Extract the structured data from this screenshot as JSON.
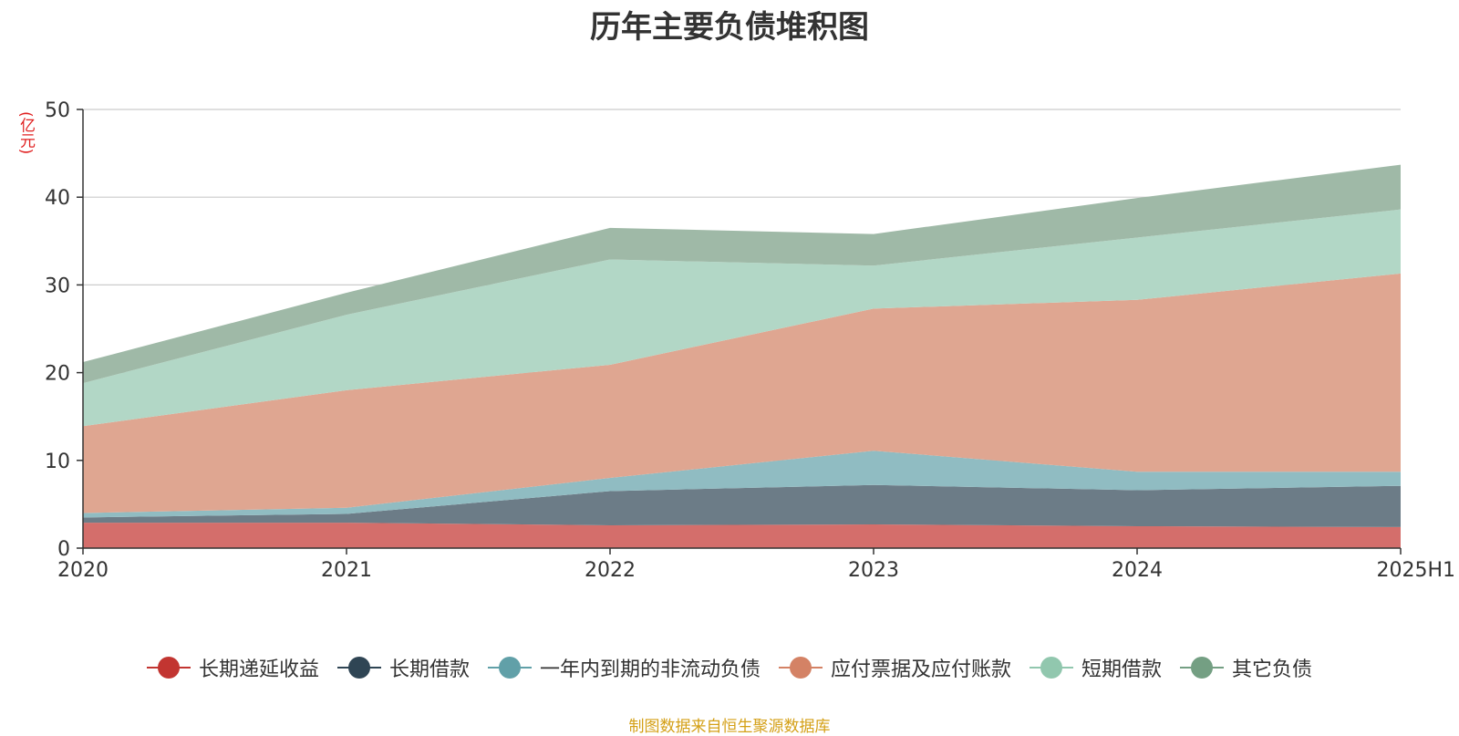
{
  "chart_data": {
    "type": "area",
    "title": "历年主要负债堆积图",
    "unit_label": "(亿元)",
    "source_note": "制图数据来自恒生聚源数据库",
    "categories": [
      "2020",
      "2021",
      "2022",
      "2023",
      "2024",
      "2025H1"
    ],
    "ylim": [
      0,
      50
    ],
    "yticks": [
      0,
      10,
      20,
      30,
      40,
      50
    ],
    "grid": true,
    "stacked": true,
    "legend_position": "bottom",
    "series": [
      {
        "name": "长期递延收益",
        "values": [
          2.9,
          2.9,
          2.6,
          2.7,
          2.5,
          2.4
        ],
        "color": "#c23531",
        "fill": "#d46e6b"
      },
      {
        "name": "长期借款",
        "values": [
          0.6,
          1.0,
          3.9,
          4.5,
          4.1,
          4.7
        ],
        "color": "#2f4554",
        "fill": "#6c7c87"
      },
      {
        "name": "一年内到期的非流动负债",
        "values": [
          0.5,
          0.7,
          1.5,
          3.9,
          2.1,
          1.6
        ],
        "color": "#61a0a8",
        "fill": "#90bcc2"
      },
      {
        "name": "应付票据及应付账款",
        "values": [
          9.9,
          13.4,
          12.9,
          16.2,
          19.6,
          22.6
        ],
        "color": "#d48265",
        "fill": "#dfa691"
      },
      {
        "name": "短期借款",
        "values": [
          4.9,
          8.6,
          12.0,
          4.9,
          7.1,
          7.3
        ],
        "color": "#91c7ae",
        "fill": "#b2d7c6"
      },
      {
        "name": "其它负债",
        "values": [
          2.4,
          2.5,
          3.6,
          3.6,
          4.5,
          5.1
        ],
        "color": "#749f83",
        "fill": "#9fb9a7"
      }
    ]
  }
}
